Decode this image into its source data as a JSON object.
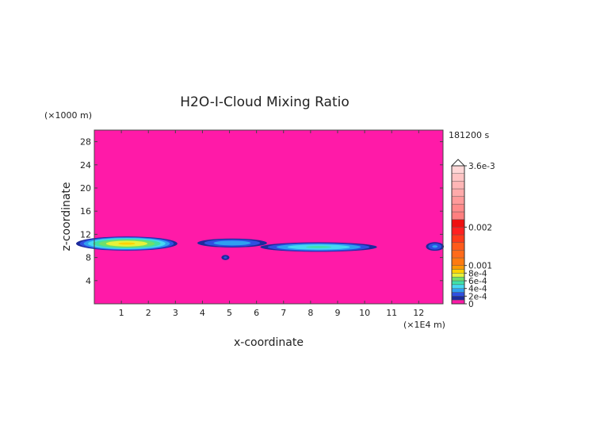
{
  "chart_data": {
    "type": "heatmap",
    "title": "H2O-I-Cloud Mixing Ratio",
    "xlabel": "x-coordinate",
    "ylabel": "z-coordinate",
    "x_unit": "(×1E4 m)",
    "y_unit": "(×1000 m)",
    "time_label": "181200 s",
    "xlim": [
      0,
      12.9
    ],
    "ylim": [
      0,
      30
    ],
    "x_ticks": [
      1,
      2,
      3,
      4,
      5,
      6,
      7,
      8,
      9,
      10,
      11,
      12
    ],
    "y_ticks": [
      4,
      8,
      12,
      16,
      20,
      24,
      28
    ],
    "background_color": "#ff1aa8",
    "colorbar": {
      "max_label": "3.6e-3",
      "tick_labels": [
        {
          "value": 0.0036,
          "label": "3.6e-3"
        },
        {
          "value": 0.002,
          "label": "0.002"
        },
        {
          "value": 0.001,
          "label": "0.001"
        },
        {
          "value": 0.0008,
          "label": "8e-4"
        },
        {
          "value": 0.0006,
          "label": "6e-4"
        },
        {
          "value": 0.0004,
          "label": "4e-4"
        },
        {
          "value": 0.0002,
          "label": "2e-4"
        },
        {
          "value": 0,
          "label": "0"
        }
      ],
      "bins": [
        {
          "from": 0,
          "to": 0.0001,
          "color": "#ff1aa8"
        },
        {
          "from": 0.0001,
          "to": 0.0002,
          "color": "#1c2a9c"
        },
        {
          "from": 0.0002,
          "to": 0.0003,
          "color": "#2f4fe0"
        },
        {
          "from": 0.0003,
          "to": 0.0004,
          "color": "#2f9ff0"
        },
        {
          "from": 0.0004,
          "to": 0.0005,
          "color": "#46d8f2"
        },
        {
          "from": 0.0005,
          "to": 0.0006,
          "color": "#3ee0a8"
        },
        {
          "from": 0.0006,
          "to": 0.0007,
          "color": "#6fe06a"
        },
        {
          "from": 0.0007,
          "to": 0.0008,
          "color": "#e6f23a"
        },
        {
          "from": 0.0008,
          "to": 0.0009,
          "color": "#ffd200"
        },
        {
          "from": 0.0009,
          "to": 0.001,
          "color": "#ff9a00"
        },
        {
          "from": 0.001,
          "to": 0.0012,
          "color": "#ff7a10"
        },
        {
          "from": 0.0012,
          "to": 0.0014,
          "color": "#ff6a1a"
        },
        {
          "from": 0.0014,
          "to": 0.0016,
          "color": "#ff5a1a"
        },
        {
          "from": 0.0016,
          "to": 0.0018,
          "color": "#ff3a1a"
        },
        {
          "from": 0.0018,
          "to": 0.002,
          "color": "#ff2020"
        },
        {
          "from": 0.002,
          "to": 0.0022,
          "color": "#ee1010"
        },
        {
          "from": 0.0022,
          "to": 0.0024,
          "color": "#ff7f7f"
        },
        {
          "from": 0.0024,
          "to": 0.0026,
          "color": "#ff8a8a"
        },
        {
          "from": 0.0026,
          "to": 0.0028,
          "color": "#ff9a9a"
        },
        {
          "from": 0.0028,
          "to": 0.003,
          "color": "#ffaaaa"
        },
        {
          "from": 0.003,
          "to": 0.0032,
          "color": "#ffb6b6"
        },
        {
          "from": 0.0032,
          "to": 0.0034,
          "color": "#ffc4c4"
        },
        {
          "from": 0.0034,
          "to": 0.0036,
          "color": "#ffd6d6"
        }
      ]
    },
    "cloud_features": [
      {
        "x_center": 1.2,
        "z_center": 10.4,
        "x_halfwidth": 2.0,
        "z_halfwidth": 1.3,
        "peak": 0.00082
      },
      {
        "x_center": 5.1,
        "z_center": 10.5,
        "x_halfwidth": 1.5,
        "z_halfwidth": 0.9,
        "peak": 0.00038
      },
      {
        "x_center": 4.85,
        "z_center": 8.0,
        "x_halfwidth": 0.2,
        "z_halfwidth": 0.6,
        "peak": 0.00022
      },
      {
        "x_center": 8.3,
        "z_center": 9.8,
        "x_halfwidth": 2.4,
        "z_halfwidth": 0.9,
        "peak": 0.00052
      },
      {
        "x_center": 12.6,
        "z_center": 9.9,
        "x_halfwidth": 0.4,
        "z_halfwidth": 0.9,
        "peak": 0.00032
      }
    ]
  }
}
